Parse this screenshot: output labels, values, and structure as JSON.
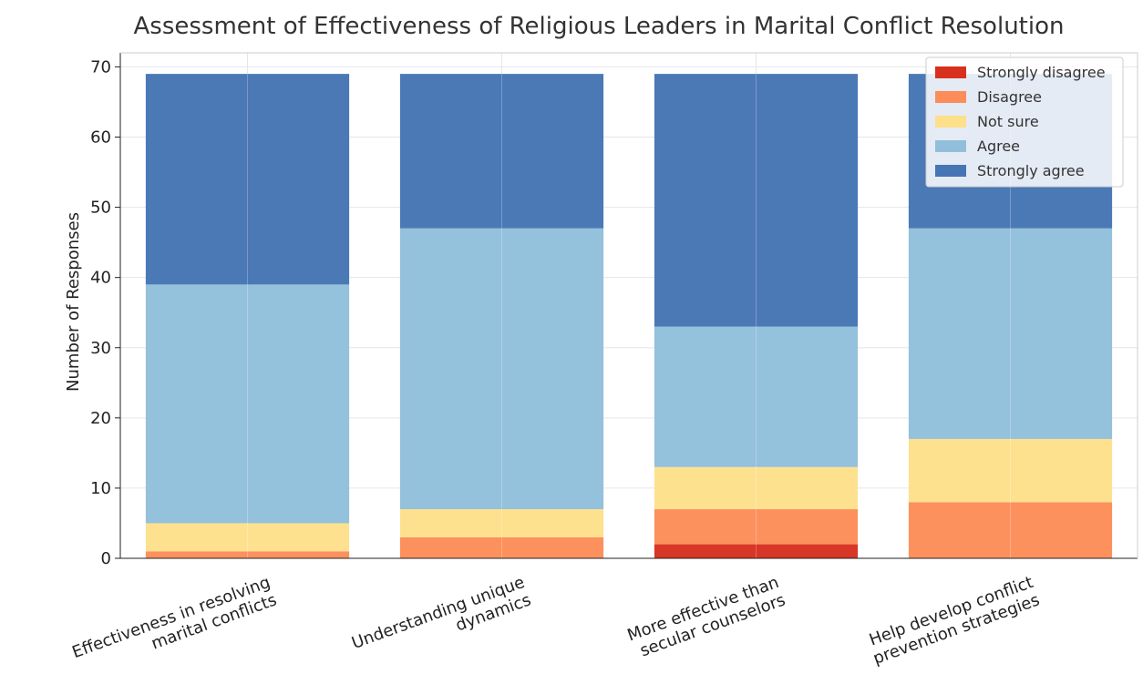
{
  "chart_data": {
    "type": "bar",
    "stacked": true,
    "title": "Assessment of Effectiveness of Religious Leaders in Marital Conflict Resolution",
    "xlabel": "",
    "ylabel": "Number of Responses",
    "ylim": [
      0,
      72
    ],
    "yticks": [
      0,
      10,
      20,
      30,
      40,
      50,
      60,
      70
    ],
    "grid": true,
    "legend_position": "top-right",
    "categories": [
      [
        "Effectiveness in resolving",
        "marital conflicts"
      ],
      [
        "Understanding unique",
        "dynamics"
      ],
      [
        "More effective than",
        "secular counselors"
      ],
      [
        "Help develop conflict",
        "prevention strategies"
      ]
    ],
    "series": [
      {
        "name": "Strongly disagree",
        "color": "#d7301f",
        "values": [
          0,
          0,
          2,
          0
        ]
      },
      {
        "name": "Disagree",
        "color": "#fc8d59",
        "values": [
          1,
          3,
          5,
          8
        ]
      },
      {
        "name": "Not sure",
        "color": "#fee08b",
        "values": [
          4,
          4,
          6,
          9
        ]
      },
      {
        "name": "Agree",
        "color": "#91bfdb",
        "values": [
          34,
          40,
          20,
          30
        ]
      },
      {
        "name": "Strongly agree",
        "color": "#4575b4",
        "values": [
          30,
          22,
          36,
          22
        ]
      }
    ]
  }
}
